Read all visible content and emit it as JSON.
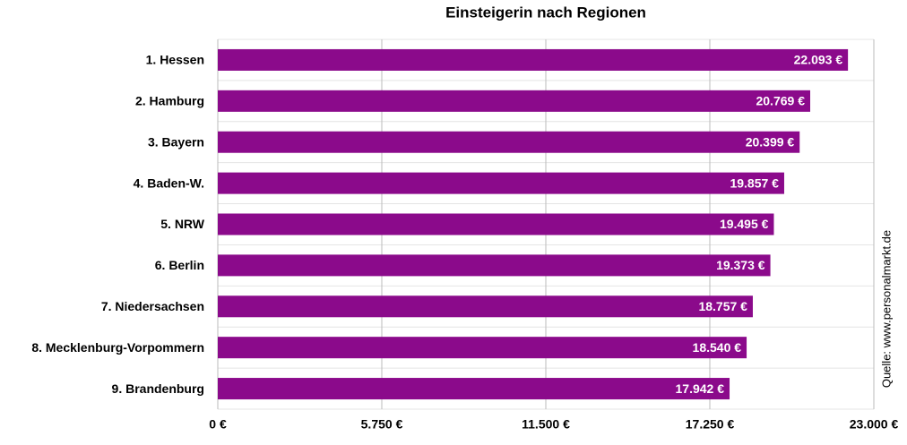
{
  "chart_data": {
    "type": "barh",
    "title": "Einsteigerin nach Regionen",
    "categories": [
      "1. Hessen",
      "2. Hamburg",
      "3. Bayern",
      "4. Baden-W.",
      "5. NRW",
      "6. Berlin",
      "7. Niedersachsen",
      "8. Mecklenburg-Vorpommern",
      "9. Brandenburg"
    ],
    "values": [
      22093,
      20769,
      20399,
      19857,
      19495,
      19373,
      18757,
      18540,
      17942
    ],
    "value_labels": [
      "22.093 €",
      "20.769 €",
      "20.399 €",
      "19.857 €",
      "19.495 €",
      "19.373 €",
      "18.757 €",
      "18.540 €",
      "17.942 €"
    ],
    "color": "#8b0a8b",
    "xlim": [
      0,
      23000
    ],
    "xticks": [
      {
        "value": 0,
        "label": "0 €"
      },
      {
        "value": 5750,
        "label": "5.750 €"
      },
      {
        "value": 11500,
        "label": "11.500 €"
      },
      {
        "value": 17250,
        "label": "17.250 €"
      },
      {
        "value": 23000,
        "label": "23.000 €"
      }
    ],
    "grid": true,
    "source": "Quelle: www.personalmarkt.de"
  }
}
